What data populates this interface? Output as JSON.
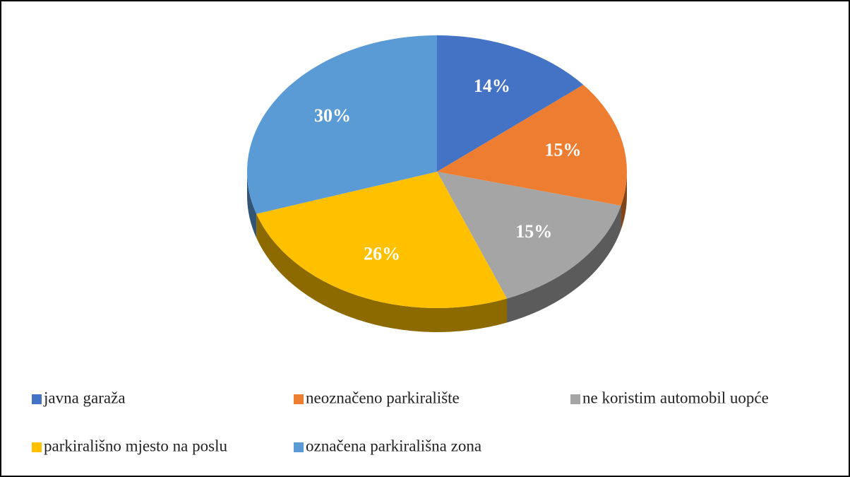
{
  "chart_data": {
    "type": "pie",
    "categories": [
      "javna garaža",
      "neoznačeno parkiralište",
      "ne koristim automobil uopće",
      "parkirališno mjesto na poslu",
      "označena parkirališna zona"
    ],
    "values": [
      14,
      15,
      15,
      26,
      30
    ],
    "value_labels": [
      "14%",
      "15%",
      "15%",
      "26%",
      "30%"
    ],
    "colors": [
      "#4472c4",
      "#ed7d31",
      "#a5a5a5",
      "#ffc000",
      "#5b9bd5"
    ],
    "legend": "bottom"
  }
}
